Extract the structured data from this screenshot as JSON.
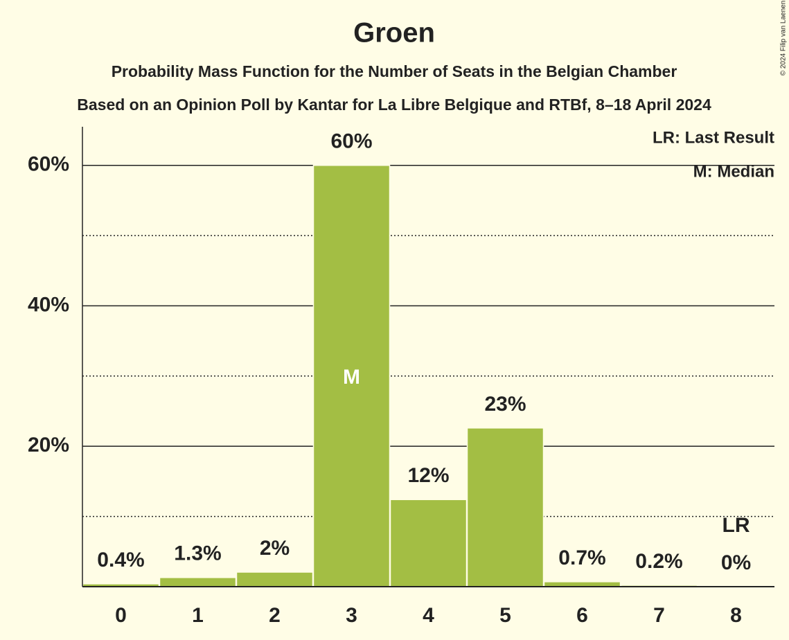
{
  "chart_data": {
    "type": "bar",
    "title": "Groen",
    "subtitle": "Probability Mass Function for the Number of Seats in the Belgian Chamber",
    "subtitle2": "Based on an Opinion Poll by Kantar for La Libre Belgique and RTBf, 8–18 April 2024",
    "categories": [
      "0",
      "1",
      "2",
      "3",
      "4",
      "5",
      "6",
      "7",
      "8"
    ],
    "values": [
      0.4,
      1.3,
      2.07,
      60,
      12.4,
      22.6,
      0.7,
      0.2,
      0
    ],
    "value_labels": [
      "0.4%",
      "1.3%",
      "2%",
      "60%",
      "12%",
      "23%",
      "0.7%",
      "0.2%",
      "0%"
    ],
    "color": "#a3be44",
    "ylim": [
      0,
      65.5
    ],
    "yticks": [
      {
        "value": 20,
        "label": "20%"
      },
      {
        "value": 40,
        "label": "40%"
      },
      {
        "value": 60,
        "label": "60%"
      }
    ],
    "minor_yticks": [
      10,
      30,
      50
    ],
    "grid": true,
    "median": {
      "index": 3,
      "label": "M"
    },
    "last_result": {
      "index": 8,
      "label": "LR"
    },
    "legend": [
      "LR: Last Result",
      "M: Median"
    ],
    "copyright": "© 2024 Filip van Laenen"
  }
}
